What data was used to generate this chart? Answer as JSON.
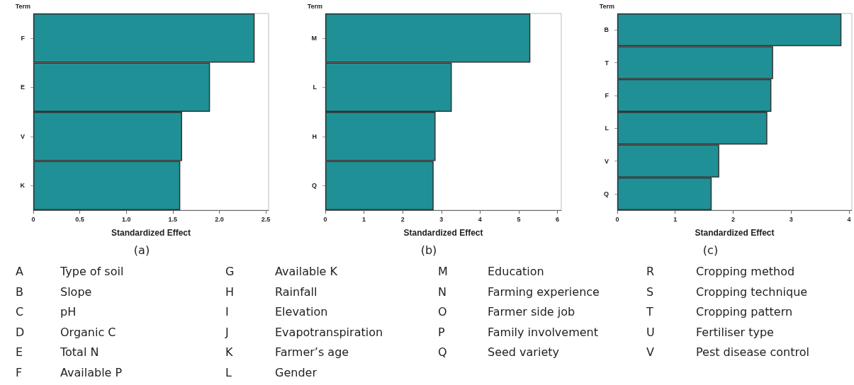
{
  "chart_data": [
    {
      "type": "bar",
      "orientation": "horizontal",
      "title": "(a)",
      "xlabel": "Standardized Effect",
      "ylabel": "Term",
      "categories": [
        "F",
        "E",
        "V",
        "K"
      ],
      "values": [
        2.38,
        1.9,
        1.6,
        1.58
      ],
      "color": "#1f9196",
      "xlim": [
        0,
        2.53
      ],
      "xticks": [
        0,
        {
          "value": 0.5,
          "label": "0.5"
        },
        {
          "value": 1,
          "label": "1.0"
        },
        {
          "value": 1.5,
          "label": "1.5"
        },
        {
          "value": 2,
          "label": "2.0"
        },
        {
          "value": 2.5,
          "label": "2.5"
        }
      ],
      "grid": false
    },
    {
      "type": "bar",
      "orientation": "horizontal",
      "title": "(b)",
      "xlabel": "Standardized Effect",
      "ylabel": "Term",
      "categories": [
        "M",
        "L",
        "H",
        "Q"
      ],
      "values": [
        5.3,
        3.27,
        2.85,
        2.8
      ],
      "color": "#1f9196",
      "xlim": [
        0,
        6.1
      ],
      "xticks": [
        0,
        1,
        2,
        3,
        4,
        5,
        6
      ],
      "grid": false
    },
    {
      "type": "bar",
      "orientation": "horizontal",
      "title": "(c)",
      "xlabel": "Standardized Effect",
      "ylabel": "Term",
      "categories": [
        "B",
        "T",
        "F",
        "L",
        "V",
        "Q"
      ],
      "values": [
        3.87,
        2.69,
        2.66,
        2.59,
        1.76,
        1.63
      ],
      "color": "#1f9196",
      "xlim": [
        0,
        4.05
      ],
      "xticks": [
        0,
        1,
        2,
        3,
        4
      ],
      "grid": false
    },
    {
      "type": "other",
      "annotations": [
        "A Type of soil",
        "B Slope",
        "C pH",
        "D Organic C",
        "E Total N",
        "F Available P"
      ]
    },
    {
      "type": "other",
      "annotations": [
        "G Available K",
        "H Rainfall",
        "I Elevation",
        "J Evapotranspiration",
        "K Farmer’s age",
        "L Gender"
      ]
    },
    {
      "type": "other",
      "annotations": [
        "M Education",
        "N Farming experience",
        "O Farmer side job",
        "P Family involvement",
        "Q Seed variety"
      ]
    },
    {
      "type": "other",
      "annotations": [
        "R Cropping method",
        "S Cropping technique",
        "T Cropping pattern",
        "U Fertiliser type",
        "V Pest disease control"
      ]
    }
  ]
}
